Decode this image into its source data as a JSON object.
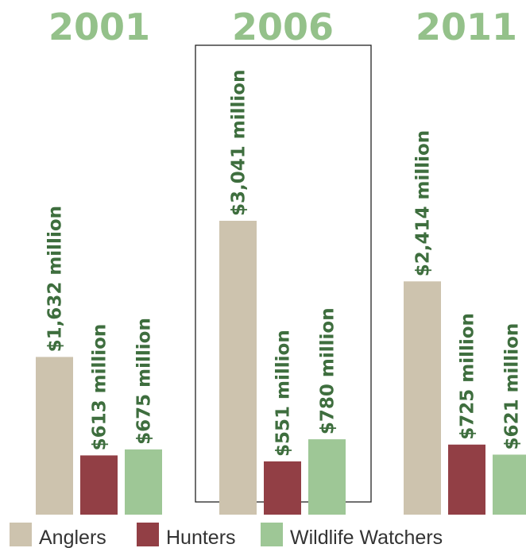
{
  "chart_data": {
    "type": "bar",
    "categories": [
      "2001",
      "2006",
      "2011"
    ],
    "highlighted_category": "2006",
    "series": [
      {
        "name": "Anglers",
        "values": [
          1632,
          3041,
          2414
        ],
        "labels": [
          "$1,632 million",
          "$3,041 million",
          "$2,414 million"
        ]
      },
      {
        "name": "Hunters",
        "values": [
          613,
          551,
          725
        ],
        "labels": [
          "$613 million",
          "$551 million",
          "$725 million"
        ]
      },
      {
        "name": "Wildlife Watchers",
        "values": [
          675,
          780,
          621
        ],
        "labels": [
          "$675 million",
          "$780 million",
          "$621 million"
        ]
      }
    ],
    "unit": "$ million",
    "ylim": [
      0,
      3041
    ],
    "grid": false,
    "legend_position": "bottom"
  },
  "colors": {
    "Anglers": "#cdc3ae",
    "Hunters": "#923f45",
    "Wildlife Watchers": "#9ec796",
    "year_text": "#94c18a",
    "value_text": "#3e6e3e",
    "highlight_box": "#222222"
  }
}
